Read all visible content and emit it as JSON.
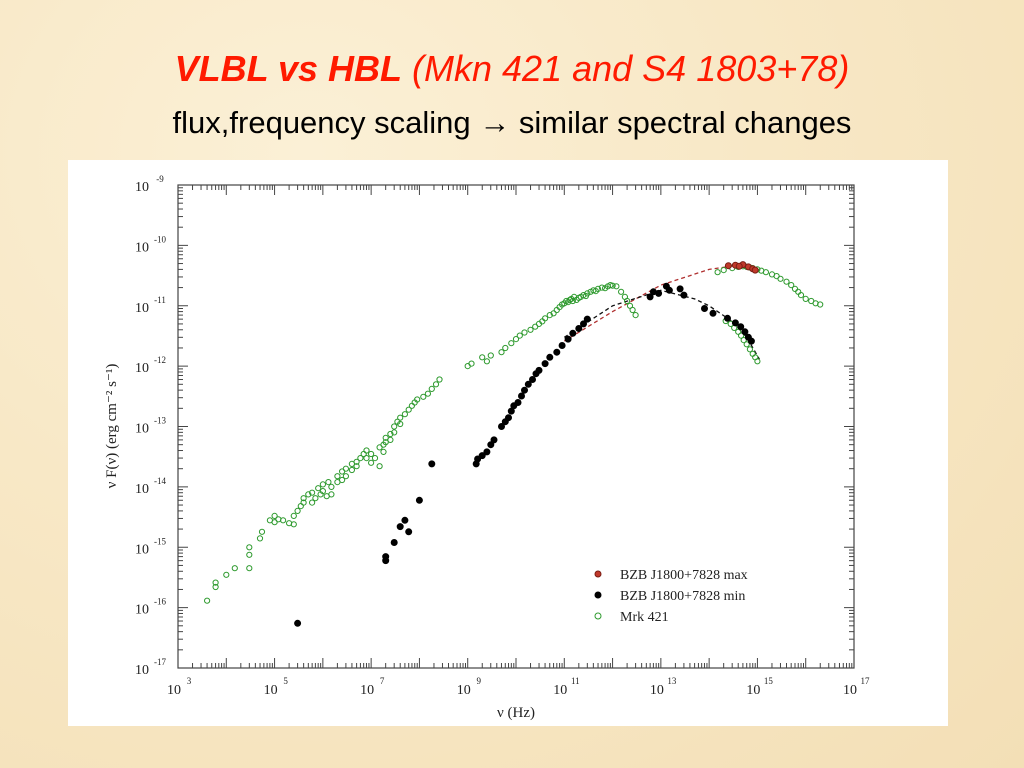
{
  "slide": {
    "title_main": "VLBL vs HBL",
    "title_paren": "(Mkn 421 and S4 1803+78)",
    "subtitle_left": "flux,frequency scaling",
    "subtitle_arrow": "→",
    "subtitle_right": "similar spectral changes"
  },
  "colors": {
    "title": "#ff1a00",
    "max_series": "#c0392b",
    "min_series": "#000000",
    "mrk_series": "#2e9a2e",
    "fit_max": "#b03030",
    "fit_min": "#111111"
  },
  "chart_data": {
    "type": "scatter",
    "log_x": true,
    "log_y": true,
    "xlim": [
      1000,
      1e+17
    ],
    "ylim": [
      1e-17,
      1e-09
    ],
    "xlabel": "ν (Hz)",
    "ylabel": "ν F(ν)   (erg cm⁻² s⁻¹)",
    "x_ticks": [
      {
        "base": "10",
        "exp": "3"
      },
      {
        "base": "10",
        "exp": "5"
      },
      {
        "base": "10",
        "exp": "7"
      },
      {
        "base": "10",
        "exp": "9"
      },
      {
        "base": "10",
        "exp": "11"
      },
      {
        "base": "10",
        "exp": "13"
      },
      {
        "base": "10",
        "exp": "15"
      },
      {
        "base": "10",
        "exp": "17"
      }
    ],
    "y_ticks": [
      {
        "base": "10",
        "exp": "-17"
      },
      {
        "base": "10",
        "exp": "-16"
      },
      {
        "base": "10",
        "exp": "-15"
      },
      {
        "base": "10",
        "exp": "-14"
      },
      {
        "base": "10",
        "exp": "-13"
      },
      {
        "base": "10",
        "exp": "-12"
      },
      {
        "base": "10",
        "exp": "-11"
      },
      {
        "base": "10",
        "exp": "-10"
      },
      {
        "base": "10",
        "exp": "-9"
      }
    ],
    "legend_position": "bottom-right",
    "series": [
      {
        "name": "BZB J1800+7828 max",
        "marker": "filled",
        "points": [
          [
            250000000000000.0,
            4.6e-11
          ],
          [
            350000000000000.0,
            4.7e-11
          ],
          [
            500000000000000.0,
            4.8e-11
          ],
          [
            650000000000000.0,
            4.4e-11
          ],
          [
            800000000000000.0,
            4.1e-11
          ],
          [
            420000000000000.0,
            4.5e-11
          ],
          [
            900000000000000.0,
            3.9e-11
          ]
        ]
      },
      {
        "name": "BZB J1800+7828 min",
        "marker": "filled",
        "points": [
          [
            300000.0,
            5.5e-17
          ],
          [
            20000000.0,
            6e-16
          ],
          [
            20000000.0,
            7e-16
          ],
          [
            30000000.0,
            1.2e-15
          ],
          [
            40000000.0,
            2.2e-15
          ],
          [
            60000000.0,
            1.8e-15
          ],
          [
            50000000.0,
            2.8e-15
          ],
          [
            100000000.0,
            6e-15
          ],
          [
            180000000.0,
            2.4e-14
          ],
          [
            1500000000.0,
            2.4e-14
          ],
          [
            1600000000.0,
            2.9e-14
          ],
          [
            2000000000.0,
            3.3e-14
          ],
          [
            2500000000.0,
            3.8e-14
          ],
          [
            3000000000.0,
            5e-14
          ],
          [
            3500000000.0,
            6e-14
          ],
          [
            5000000000.0,
            1e-13
          ],
          [
            6000000000.0,
            1.2e-13
          ],
          [
            7000000000.0,
            1.4e-13
          ],
          [
            8000000000.0,
            1.8e-13
          ],
          [
            9000000000.0,
            2.2e-13
          ],
          [
            11000000000.0,
            2.5e-13
          ],
          [
            13000000000.0,
            3.2e-13
          ],
          [
            15000000000.0,
            4e-13
          ],
          [
            18000000000.0,
            5e-13
          ],
          [
            22000000000.0,
            6e-13
          ],
          [
            26000000000.0,
            7.5e-13
          ],
          [
            30000000000.0,
            8.5e-13
          ],
          [
            40000000000.0,
            1.1e-12
          ],
          [
            50000000000.0,
            1.4e-12
          ],
          [
            70000000000.0,
            1.7e-12
          ],
          [
            90000000000.0,
            2.2e-12
          ],
          [
            120000000000.0,
            2.8e-12
          ],
          [
            150000000000.0,
            3.5e-12
          ],
          [
            200000000000.0,
            4.2e-12
          ],
          [
            250000000000.0,
            5e-12
          ],
          [
            300000000000.0,
            6e-12
          ],
          [
            6000000000000.0,
            1.4e-11
          ],
          [
            7000000000000.0,
            1.7e-11
          ],
          [
            9000000000000.0,
            1.6e-11
          ],
          [
            15000000000000.0,
            1.8e-11
          ],
          [
            25000000000000.0,
            1.9e-11
          ],
          [
            13000000000000.0,
            2.1e-11
          ],
          [
            30000000000000.0,
            1.5e-11
          ],
          [
            80000000000000.0,
            9e-12
          ],
          [
            120000000000000.0,
            7.5e-12
          ],
          [
            240000000000000.0,
            6.2e-12
          ],
          [
            350000000000000.0,
            5.2e-12
          ],
          [
            450000000000000.0,
            4.5e-12
          ],
          [
            550000000000000.0,
            3.7e-12
          ],
          [
            650000000000000.0,
            3e-12
          ],
          [
            750000000000000.0,
            2.6e-12
          ]
        ]
      },
      {
        "name": "Mrk 421",
        "marker": "open",
        "points": [
          [
            4000.0,
            1.3e-16
          ],
          [
            6000.0,
            2.2e-16
          ],
          [
            6000.0,
            2.6e-16
          ],
          [
            10000.0,
            3.5e-16
          ],
          [
            15000.0,
            4.5e-16
          ],
          [
            30000.0,
            1e-15
          ],
          [
            30000.0,
            7.5e-16
          ],
          [
            30000.0,
            4.5e-16
          ],
          [
            50000.0,
            1.4e-15
          ],
          [
            55000.0,
            1.8e-15
          ],
          [
            80000.0,
            2.8e-15
          ],
          [
            100000.0,
            3.3e-15
          ],
          [
            100000.0,
            2.6e-15
          ],
          [
            120000.0,
            2.9e-15
          ],
          [
            150000.0,
            2.8e-15
          ],
          [
            200000.0,
            2.5e-15
          ],
          [
            250000.0,
            2.4e-15
          ],
          [
            250000.0,
            3.3e-15
          ],
          [
            300000.0,
            4e-15
          ],
          [
            350000.0,
            4.8e-15
          ],
          [
            400000.0,
            6.5e-15
          ],
          [
            400000.0,
            5.5e-15
          ],
          [
            500000.0,
            7.5e-15
          ],
          [
            600000.0,
            8e-15
          ],
          [
            600000.0,
            5.5e-15
          ],
          [
            700000.0,
            6.5e-15
          ],
          [
            800000.0,
            9.5e-15
          ],
          [
            900000.0,
            7.5e-15
          ],
          [
            1000000.0,
            1.1e-14
          ],
          [
            1000000.0,
            8.5e-15
          ],
          [
            1200000.0,
            7e-15
          ],
          [
            1300000.0,
            1.2e-14
          ],
          [
            1500000.0,
            1e-14
          ],
          [
            1500000.0,
            7.5e-15
          ],
          [
            2000000.0,
            1.5e-14
          ],
          [
            2000000.0,
            1.2e-14
          ],
          [
            2500000.0,
            1.8e-14
          ],
          [
            2500000.0,
            1.3e-14
          ],
          [
            3000000.0,
            1.5e-14
          ],
          [
            3000000.0,
            2e-14
          ],
          [
            4000000.0,
            2.4e-14
          ],
          [
            4000000.0,
            1.9e-14
          ],
          [
            5000000.0,
            2.6e-14
          ],
          [
            5000000.0,
            2.2e-14
          ],
          [
            6000000.0,
            3e-14
          ],
          [
            7000000.0,
            3.5e-14
          ],
          [
            8000000.0,
            4e-14
          ],
          [
            8000000.0,
            3e-14
          ],
          [
            10000000.0,
            2.5e-14
          ],
          [
            10000000.0,
            3.5e-14
          ],
          [
            12000000.0,
            3e-14
          ],
          [
            15000000.0,
            2.2e-14
          ],
          [
            15000000.0,
            4.5e-14
          ],
          [
            18000000.0,
            5e-14
          ],
          [
            18000000.0,
            3.8e-14
          ],
          [
            20000000.0,
            6.5e-14
          ],
          [
            20000000.0,
            5.5e-14
          ],
          [
            25000000.0,
            7.5e-14
          ],
          [
            25000000.0,
            6e-14
          ],
          [
            30000000.0,
            8e-14
          ],
          [
            30000000.0,
            1e-13
          ],
          [
            35000000.0,
            1.2e-13
          ],
          [
            40000000.0,
            1.4e-13
          ],
          [
            40000000.0,
            1.1e-13
          ],
          [
            50000000.0,
            1.6e-13
          ],
          [
            60000000.0,
            1.9e-13
          ],
          [
            70000000.0,
            2.2e-13
          ],
          [
            80000000.0,
            2.5e-13
          ],
          [
            90000000.0,
            2.8e-13
          ],
          [
            120000000.0,
            3.1e-13
          ],
          [
            150000000.0,
            3.5e-13
          ],
          [
            180000000.0,
            4.2e-13
          ],
          [
            220000000.0,
            5e-13
          ],
          [
            260000000.0,
            6e-13
          ],
          [
            1000000000.0,
            1e-12
          ],
          [
            1200000000.0,
            1.1e-12
          ],
          [
            2000000000.0,
            1.4e-12
          ],
          [
            2500000000.0,
            1.2e-12
          ],
          [
            3000000000.0,
            1.5e-12
          ],
          [
            5000000000.0,
            1.7e-12
          ],
          [
            6000000000.0,
            2e-12
          ],
          [
            8000000000.0,
            2.4e-12
          ],
          [
            10000000000.0,
            2.8e-12
          ],
          [
            12000000000.0,
            3.2e-12
          ],
          [
            15000000000.0,
            3.6e-12
          ],
          [
            20000000000.0,
            4e-12
          ],
          [
            25000000000.0,
            4.5e-12
          ],
          [
            30000000000.0,
            5e-12
          ],
          [
            35000000000.0,
            5.5e-12
          ],
          [
            40000000000.0,
            6.2e-12
          ],
          [
            50000000000.0,
            7e-12
          ],
          [
            60000000000.0,
            7.5e-12
          ],
          [
            70000000000.0,
            8.5e-12
          ],
          [
            80000000000.0,
            9.5e-12
          ],
          [
            90000000000.0,
            1.05e-11
          ],
          [
            100000000000.0,
            1.1e-11
          ],
          [
            110000000000.0,
            1.2e-11
          ],
          [
            120000000000.0,
            1.15e-11
          ],
          [
            130000000000.0,
            1.25e-11
          ],
          [
            140000000000.0,
            1.3e-11
          ],
          [
            150000000000.0,
            1.2e-11
          ],
          [
            160000000000.0,
            1.4e-11
          ],
          [
            180000000000.0,
            1.25e-11
          ],
          [
            200000000000.0,
            1.35e-11
          ],
          [
            220000000000.0,
            1.4e-11
          ],
          [
            250000000000.0,
            1.5e-11
          ],
          [
            280000000000.0,
            1.45e-11
          ],
          [
            300000000000.0,
            1.6e-11
          ],
          [
            350000000000.0,
            1.7e-11
          ],
          [
            400000000000.0,
            1.8e-11
          ],
          [
            450000000000.0,
            1.75e-11
          ],
          [
            500000000000.0,
            1.9e-11
          ],
          [
            600000000000.0,
            2e-11
          ],
          [
            700000000000.0,
            1.95e-11
          ],
          [
            800000000000.0,
            2.1e-11
          ],
          [
            900000000000.0,
            2.2e-11
          ],
          [
            1000000000000.0,
            2.15e-11
          ],
          [
            1200000000000.0,
            2.1e-11
          ],
          [
            1500000000000.0,
            1.7e-11
          ],
          [
            1800000000000.0,
            1.4e-11
          ],
          [
            2000000000000.0,
            1.2e-11
          ],
          [
            2300000000000.0,
            1e-11
          ],
          [
            2600000000000.0,
            8.5e-12
          ],
          [
            3000000000000.0,
            7e-12
          ],
          [
            150000000000000.0,
            3.6e-11
          ],
          [
            200000000000000.0,
            3.9e-11
          ],
          [
            300000000000000.0,
            4.2e-11
          ],
          [
            400000000000000.0,
            4.4e-11
          ],
          [
            500000000000000.0,
            4.5e-11
          ],
          [
            600000000000000.0,
            4.4e-11
          ],
          [
            700000000000000.0,
            4.3e-11
          ],
          [
            800000000000000.0,
            4.2e-11
          ],
          [
            1000000000000000.0,
            4e-11
          ],
          [
            1200000000000000.0,
            3.8e-11
          ],
          [
            1500000000000000.0,
            3.6e-11
          ],
          [
            2000000000000000.0,
            3.3e-11
          ],
          [
            2500000000000000.0,
            3.1e-11
          ],
          [
            3000000000000000.0,
            2.8e-11
          ],
          [
            4000000000000000.0,
            2.5e-11
          ],
          [
            5000000000000000.0,
            2.2e-11
          ],
          [
            6000000000000000.0,
            1.9e-11
          ],
          [
            7000000000000000.0,
            1.7e-11
          ],
          [
            8000000000000000.0,
            1.5e-11
          ],
          [
            1e+16,
            1.3e-11
          ],
          [
            1.3e+16,
            1.2e-11
          ],
          [
            1.6e+16,
            1.1e-11
          ],
          [
            2e+16,
            1.05e-11
          ],
          [
            220000000000000.0,
            5.6e-12
          ],
          [
            280000000000000.0,
            5e-12
          ],
          [
            330000000000000.0,
            4.3e-12
          ],
          [
            400000000000000.0,
            3.7e-12
          ],
          [
            460000000000000.0,
            3.2e-12
          ],
          [
            520000000000000.0,
            2.7e-12
          ],
          [
            600000000000000.0,
            2.3e-12
          ],
          [
            700000000000000.0,
            1.9e-12
          ],
          [
            800000000000000.0,
            1.6e-12
          ],
          [
            900000000000000.0,
            1.4e-12
          ],
          [
            1000000000000000.0,
            1.2e-12
          ]
        ]
      }
    ],
    "fit_lines": [
      {
        "name": "max fit",
        "style": "dashed",
        "points": [
          [
            100000000000.0,
            2.6e-12
          ],
          [
            1000000000000.0,
            8e-12
          ],
          [
            10000000000000.0,
            2.2e-11
          ],
          [
            100000000000000.0,
            4e-11
          ],
          [
            400000000000000.0,
            4.7e-11
          ],
          [
            1000000000000000.0,
            4.2e-11
          ]
        ]
      },
      {
        "name": "min fit",
        "style": "dashed",
        "points": [
          [
            100000000000.0,
            3e-12
          ],
          [
            1000000000000.0,
            1e-11
          ],
          [
            10000000000000.0,
            1.8e-11
          ],
          [
            50000000000000.0,
            1.3e-11
          ],
          [
            100000000000000.0,
            1e-11
          ],
          [
            300000000000000.0,
            5.5e-12
          ],
          [
            600000000000000.0,
            3e-12
          ],
          [
            1100000000000000.0,
            1.3e-12
          ]
        ]
      }
    ]
  }
}
